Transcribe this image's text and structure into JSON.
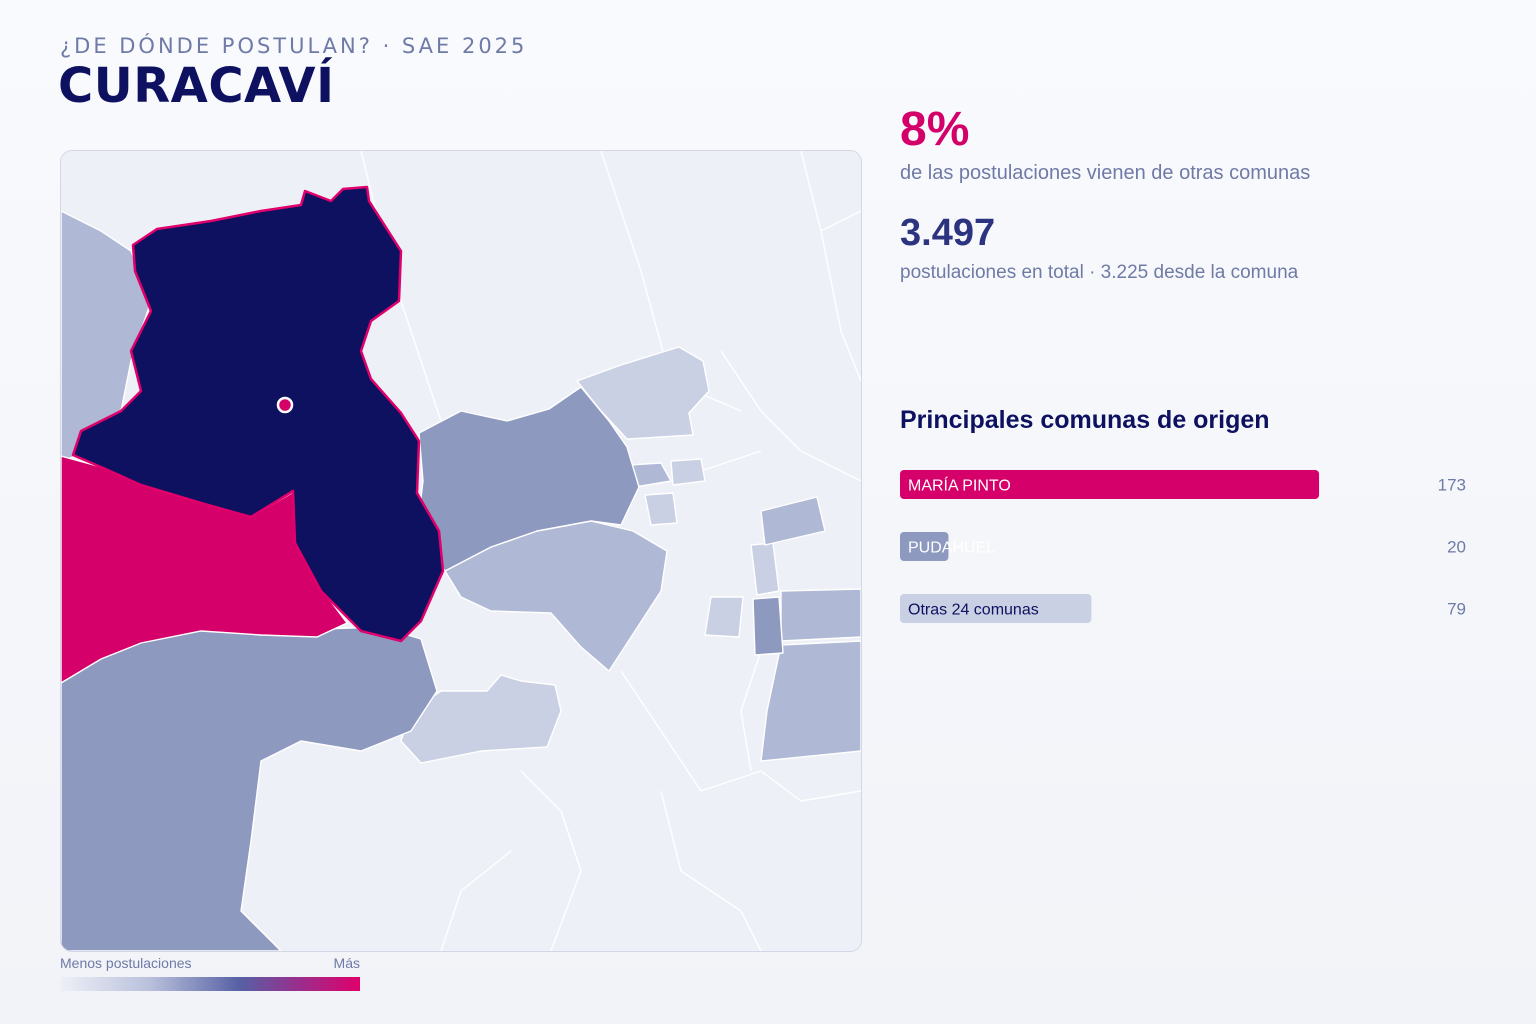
{
  "header": {
    "eyebrow": "¿DE DÓNDE POSTULAN? · SAE 2025",
    "title": "CURACAVÍ"
  },
  "kpis": {
    "external_pct": "8%",
    "external_pct_desc": "de las postulaciones vienen de otras comunas",
    "total": "3.497",
    "total_desc": "postulaciones en total · 3.225 desde la comuna"
  },
  "legend": {
    "low_label": "Menos postulaciones",
    "high_label": "Más"
  },
  "map": {
    "highlight_commune": "Curacaví",
    "colors": {
      "selected": "#0d1160",
      "selected_outline": "#e0006b",
      "top_origin": "#d6006a",
      "high": "#8d99bf",
      "mid": "#afb8d5",
      "low": "#c9d0e3",
      "none": "#eef0f7"
    }
  },
  "chart_data": {
    "type": "bar",
    "orientation": "horizontal",
    "title": "Principales comunas de origen",
    "categories": [
      "MARÍA PINTO",
      "PUDAHUEL",
      "Otras 24 comunas"
    ],
    "values": [
      173,
      20,
      79
    ],
    "value_labels": [
      "173",
      "20",
      "79"
    ],
    "colors": [
      "#d6006a",
      "#8d99bf",
      "#c9d0e3"
    ],
    "label_colors": [
      "#ffffff",
      "#ffffff",
      "#0d1160"
    ],
    "xlim": [
      0,
      180
    ]
  }
}
